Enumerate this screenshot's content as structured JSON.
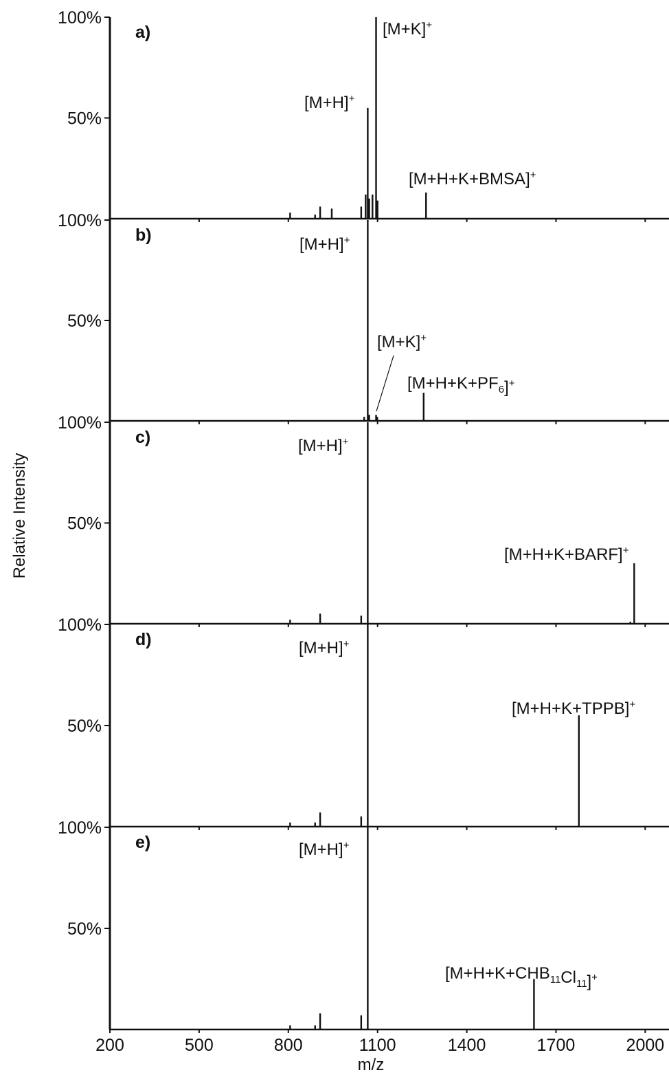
{
  "chart_data": {
    "type": "line",
    "title": "",
    "xlabel": "m/z",
    "ylabel": "Relative Intensity",
    "xlim": [
      200,
      2080
    ],
    "xticks": [
      200,
      500,
      800,
      1100,
      1400,
      1700,
      2000
    ],
    "x_tick_labels": [
      "200",
      "500",
      "800",
      "1100",
      "1400",
      "1700",
      "2000"
    ],
    "panel_top_label": "100%",
    "panel_mid_label": "50%",
    "ylim": [
      0,
      100
    ],
    "color": "#111111",
    "grid": false,
    "panels": [
      {
        "label": "a)",
        "peaks": [
          {
            "x": 806,
            "y": 3
          },
          {
            "x": 890,
            "y": 2
          },
          {
            "x": 907,
            "y": 6
          },
          {
            "x": 946,
            "y": 5
          },
          {
            "x": 1045,
            "y": 6
          },
          {
            "x": 1060,
            "y": 12
          },
          {
            "x": 1067,
            "y": 55
          },
          {
            "x": 1072,
            "y": 10
          },
          {
            "x": 1083,
            "y": 12
          },
          {
            "x": 1095,
            "y": 100
          },
          {
            "x": 1100,
            "y": 9
          },
          {
            "x": 1263,
            "y": 13
          }
        ],
        "annotations": [
          {
            "base": "[M+K]",
            "sub": "",
            "tail": "]",
            "sup": "+",
            "x": 1095,
            "y": 100,
            "text": "[M+K]+"
          },
          {
            "base": "[M+H]",
            "sub": "",
            "tail": "]",
            "sup": "+",
            "x": 1067,
            "y": 55,
            "text": "[M+H]+"
          },
          {
            "base": "[M+H+K+BMSA]",
            "sub": "",
            "tail": "]",
            "sup": "+",
            "x": 1263,
            "y": 13,
            "text": "[M+H+K+BMSA]+"
          }
        ]
      },
      {
        "label": "b)",
        "peaks": [
          {
            "x": 1055,
            "y": 2
          },
          {
            "x": 1067,
            "y": 100
          },
          {
            "x": 1072,
            "y": 3
          },
          {
            "x": 1095,
            "y": 3
          },
          {
            "x": 1099,
            "y": 2
          },
          {
            "x": 1255,
            "y": 14
          }
        ],
        "annotations": [
          {
            "text": "[M+H]+",
            "x": 1067,
            "y": 100
          },
          {
            "text": "[M+K]+",
            "x": 1095,
            "y": 3
          },
          {
            "text": "[M+H+K+PF6]+",
            "x": 1255,
            "y": 14
          }
        ]
      },
      {
        "label": "c)",
        "peaks": [
          {
            "x": 806,
            "y": 2
          },
          {
            "x": 907,
            "y": 5
          },
          {
            "x": 1045,
            "y": 4
          },
          {
            "x": 1067,
            "y": 100
          },
          {
            "x": 1950,
            "y": 1
          },
          {
            "x": 1963,
            "y": 30
          }
        ],
        "annotations": [
          {
            "text": "[M+H]+",
            "x": 1067,
            "y": 100
          },
          {
            "text": "[M+H+K+BARF]+",
            "x": 1963,
            "y": 30
          }
        ]
      },
      {
        "label": "d)",
        "peaks": [
          {
            "x": 806,
            "y": 2
          },
          {
            "x": 890,
            "y": 2
          },
          {
            "x": 907,
            "y": 7
          },
          {
            "x": 1045,
            "y": 5
          },
          {
            "x": 1067,
            "y": 100
          },
          {
            "x": 1777,
            "y": 55
          }
        ],
        "annotations": [
          {
            "text": "[M+H]+",
            "x": 1067,
            "y": 100
          },
          {
            "text": "[M+H+K+TPPB]+",
            "x": 1777,
            "y": 55
          }
        ]
      },
      {
        "label": "e)",
        "peaks": [
          {
            "x": 806,
            "y": 2
          },
          {
            "x": 890,
            "y": 2
          },
          {
            "x": 907,
            "y": 8
          },
          {
            "x": 1045,
            "y": 7
          },
          {
            "x": 1067,
            "y": 100
          },
          {
            "x": 1626,
            "y": 25
          }
        ],
        "annotations": [
          {
            "text": "[M+H]+",
            "x": 1067,
            "y": 100
          },
          {
            "text": "[M+H+K+CHB11Cl11]+",
            "x": 1626,
            "y": 25
          }
        ]
      }
    ]
  }
}
